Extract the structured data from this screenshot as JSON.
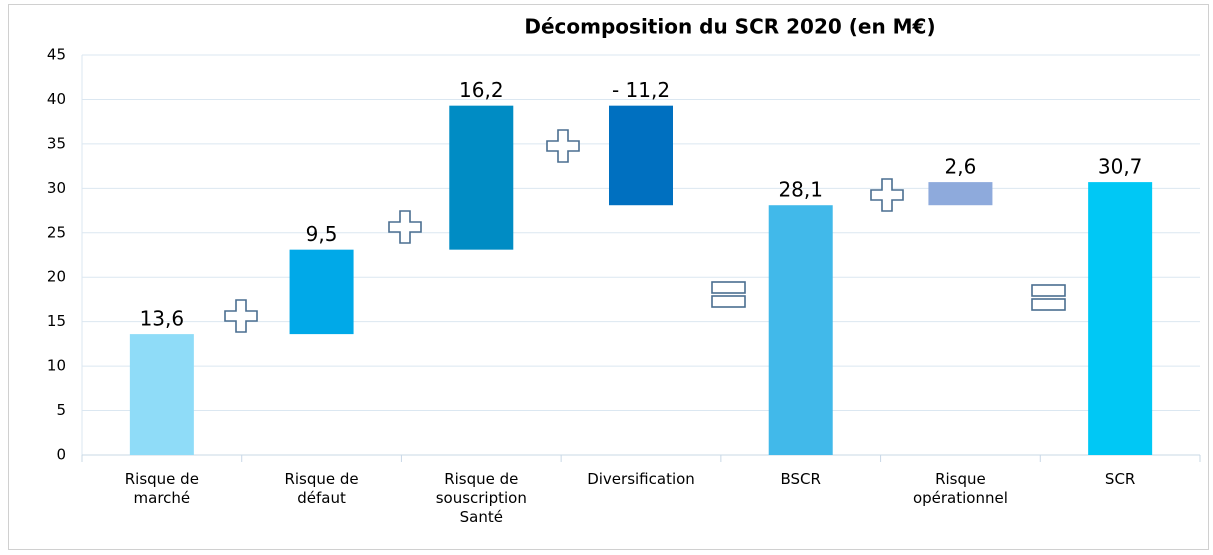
{
  "chart_data": {
    "type": "waterfall",
    "title": "Décomposition du SCR 2020 (en M€)",
    "categories": [
      "Risque de marché",
      "Risque de défaut",
      "Risque de souscription Santé",
      "Diversification",
      "BSCR",
      "Risque opérationnel",
      "SCR"
    ],
    "values": [
      13.6,
      9.5,
      16.2,
      -11.2,
      28.1,
      2.6,
      30.7
    ],
    "value_labels": [
      "13,6",
      "9,5",
      "16,2",
      "- 11,2",
      "28,1",
      "2,6",
      "30,7"
    ],
    "totals": [
      false,
      false,
      false,
      false,
      true,
      false,
      true
    ],
    "colors": [
      "#8fdcf8",
      "#00a9e8",
      "#008cc4",
      "#0070c0",
      "#41b9ea",
      "#8eaadc",
      "#00c8f5"
    ],
    "ylim": [
      0,
      45
    ],
    "yticks": [
      0,
      5,
      10,
      15,
      20,
      25,
      30,
      35,
      40,
      45
    ],
    "grid": true
  }
}
